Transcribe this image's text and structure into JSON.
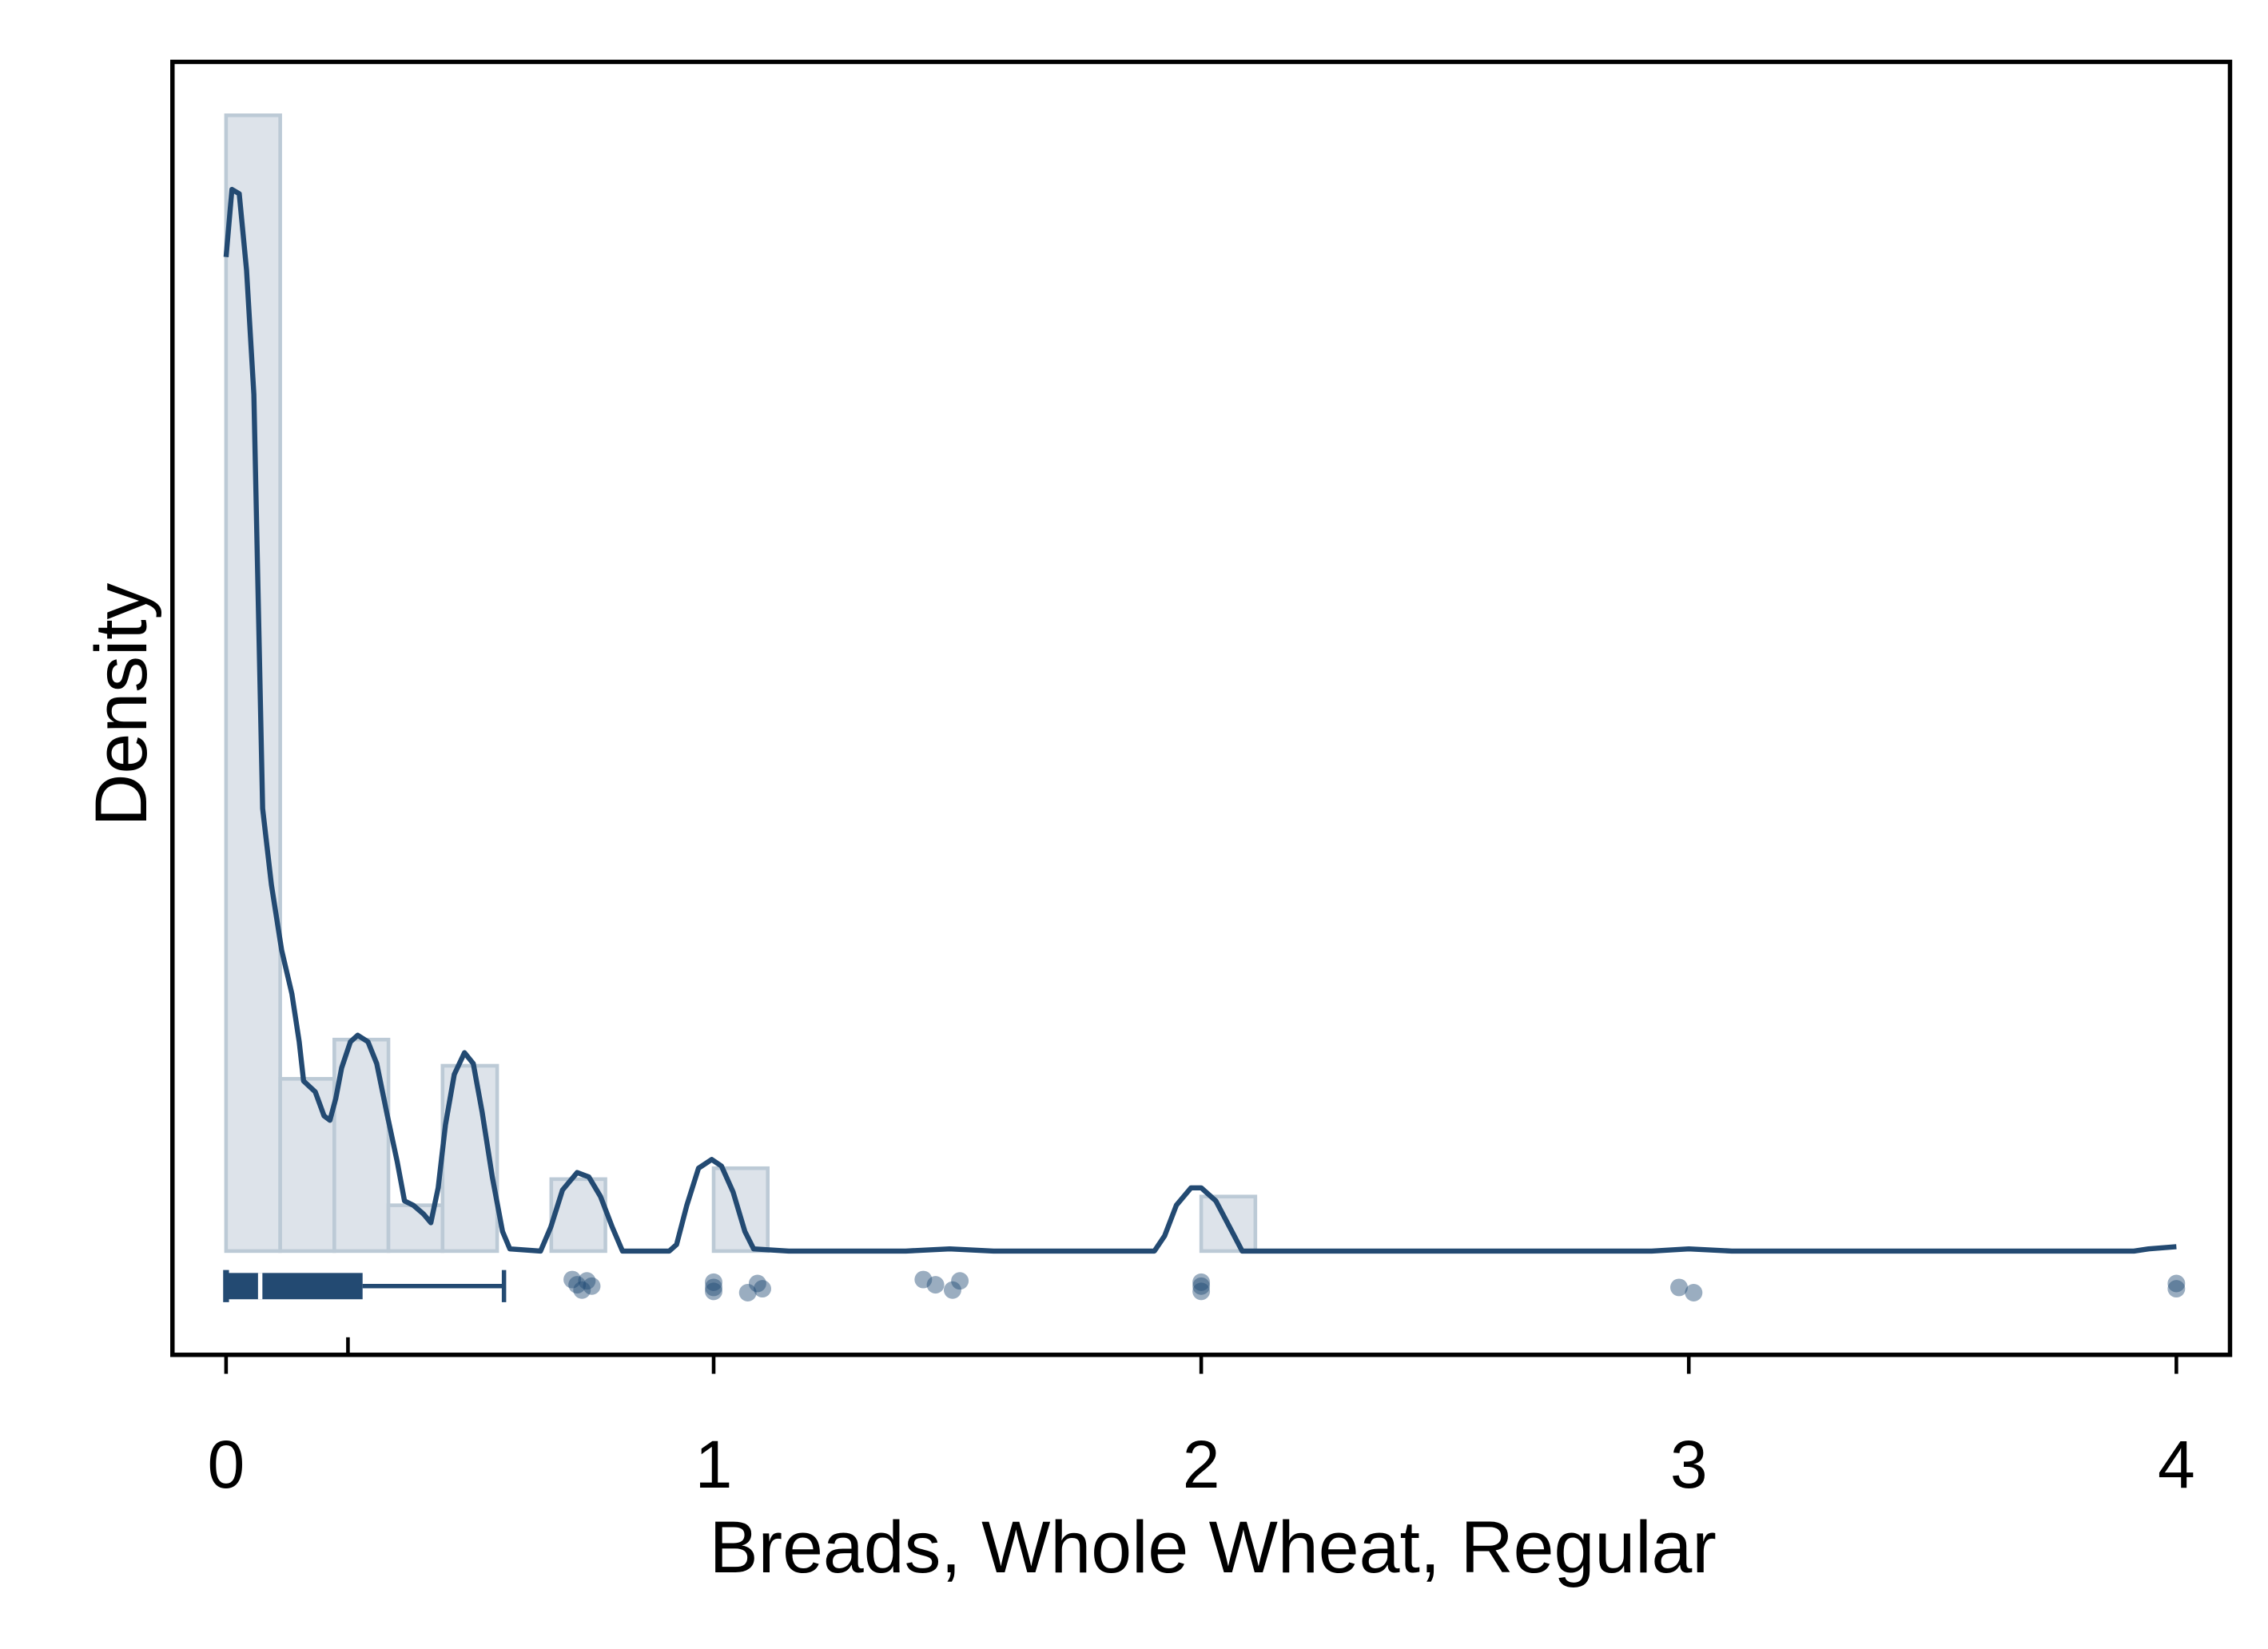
{
  "chart_data": {
    "type": "histogram",
    "x_label": "Breads, Whole Wheat, Regular",
    "y_label": "Density",
    "xlim": [
      -0.11,
      4.11
    ],
    "ylim": [
      -0.476,
      5.455
    ],
    "xticks": [
      0,
      1,
      2,
      3,
      4
    ],
    "bins": [
      0,
      0.111,
      0.222,
      0.333,
      0.444,
      0.556,
      0.667,
      0.778,
      0.889,
      1,
      1.111,
      1.222,
      1.333,
      1.444,
      1.556,
      1.667,
      1.778,
      1.889,
      2,
      2.111,
      2.222,
      2.333,
      2.444,
      2.556,
      2.667,
      2.778,
      2.889,
      3,
      3.111,
      3.222,
      3.333,
      3.444,
      3.556,
      3.667,
      3.778,
      3.889,
      4
    ],
    "values": [
      5.21,
      0.79,
      0.97,
      0.21,
      0.85,
      0,
      0.33,
      0,
      0,
      0.38,
      0,
      0,
      0,
      0,
      0,
      0,
      0,
      0,
      0.25,
      0,
      0,
      0,
      0,
      0,
      0,
      0,
      0,
      0,
      0,
      0,
      0,
      0,
      0,
      0,
      0,
      0
    ],
    "color": "#dde3ea",
    "edge_color": "#bccad6",
    "density": {
      "color": "#234a72",
      "x": [
        0,
        0.012,
        0.027,
        0.042,
        0.057,
        0.075,
        0.093,
        0.114,
        0.135,
        0.15,
        0.159,
        0.183,
        0.201,
        0.213,
        0.225,
        0.237,
        0.255,
        0.27,
        0.291,
        0.309,
        0.33,
        0.351,
        0.366,
        0.384,
        0.405,
        0.42,
        0.435,
        0.45,
        0.468,
        0.489,
        0.507,
        0.525,
        0.546,
        0.567,
        0.582,
        0.645,
        0.666,
        0.69,
        0.72,
        0.744,
        0.768,
        0.792,
        0.813,
        0.909,
        0.924,
        0.945,
        0.969,
        0.996,
        1.016,
        1.04,
        1.064,
        1.082,
        1.154,
        1.394,
        1.484,
        1.574,
        1.904,
        1.925,
        1.949,
        1.979,
        2.0,
        2.03,
        2.063,
        2.084,
        2.924,
        3.0,
        3.088,
        3.913,
        3.943,
        4.0
      ],
      "y": [
        4.56,
        4.87,
        4.85,
        4.5,
        3.93,
        2.03,
        1.68,
        1.38,
        1.18,
        0.96,
        0.78,
        0.73,
        0.62,
        0.6,
        0.7,
        0.84,
        0.96,
        0.99,
        0.96,
        0.86,
        0.63,
        0.41,
        0.23,
        0.21,
        0.17,
        0.13,
        0.29,
        0.58,
        0.81,
        0.91,
        0.86,
        0.64,
        0.34,
        0.09,
        0.01,
        0,
        0.11,
        0.28,
        0.36,
        0.34,
        0.25,
        0.11,
        0,
        0,
        0.03,
        0.21,
        0.38,
        0.42,
        0.39,
        0.27,
        0.09,
        0.01,
        0,
        0,
        0.01,
        0,
        0,
        0.07,
        0.21,
        0.29,
        0.29,
        0.23,
        0.09,
        0,
        0,
        0.01,
        0,
        0,
        0.01,
        0.02
      ]
    },
    "box": {
      "color": "#234a72",
      "min": 0,
      "q1": 0,
      "median": 0.07,
      "q3": 0.28,
      "whisker_high": 0.57,
      "mean": 0.25
    },
    "points": {
      "color": "#1e4a74",
      "x": [
        0.71,
        0.72,
        0.73,
        0.74,
        0.75,
        1.0,
        1.0,
        1.0,
        1.07,
        1.09,
        1.1,
        1.43,
        1.455,
        1.49,
        1.505,
        2.0,
        2.0,
        2.0,
        2.98,
        3.01,
        4.0,
        4.0
      ]
    }
  }
}
